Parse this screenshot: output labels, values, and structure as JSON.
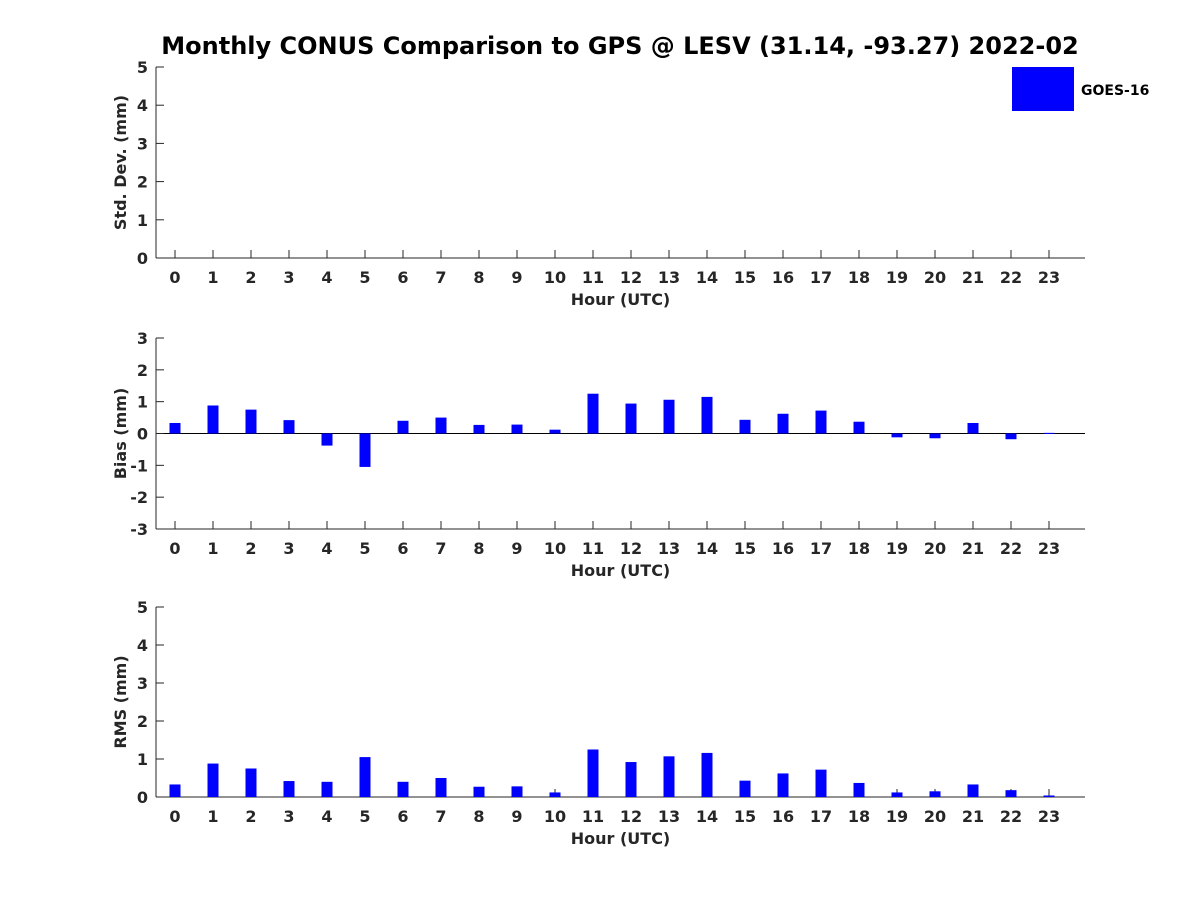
{
  "title": "Monthly CONUS Comparison to GPS @ LESV (31.14, -93.27) 2022-02",
  "legend": {
    "label": "GOES-16",
    "color": "#0000ff",
    "placement": "top-right"
  },
  "chart_data": [
    {
      "type": "bar",
      "id": "std",
      "xlabel": "Hour (UTC)",
      "ylabel": "Std. Dev. (mm)",
      "categories": [
        "0",
        "1",
        "2",
        "3",
        "4",
        "5",
        "6",
        "7",
        "8",
        "9",
        "10",
        "11",
        "12",
        "13",
        "14",
        "15",
        "16",
        "17",
        "18",
        "19",
        "20",
        "21",
        "22",
        "23"
      ],
      "ylim": [
        0,
        5
      ],
      "yticks": [
        "0",
        "1",
        "2",
        "3",
        "4",
        "5"
      ],
      "grid": false,
      "series": [
        {
          "values": [
            null,
            null,
            null,
            null,
            null,
            null,
            null,
            null,
            null,
            null,
            null,
            null,
            null,
            null,
            null,
            null,
            null,
            null,
            null,
            null,
            null,
            null,
            null,
            null
          ]
        }
      ]
    },
    {
      "type": "bar",
      "id": "bias",
      "xlabel": "Hour (UTC)",
      "ylabel": "Bias (mm)",
      "categories": [
        "0",
        "1",
        "2",
        "3",
        "4",
        "5",
        "6",
        "7",
        "8",
        "9",
        "10",
        "11",
        "12",
        "13",
        "14",
        "15",
        "16",
        "17",
        "18",
        "19",
        "20",
        "21",
        "22",
        "23"
      ],
      "ylim": [
        -3,
        3
      ],
      "yticks": [
        "-3",
        "-2",
        "-1",
        "0",
        "1",
        "2",
        "3"
      ],
      "grid": false,
      "series": [
        {
          "values": [
            0.33,
            0.88,
            0.75,
            0.42,
            -0.38,
            -1.05,
            0.4,
            0.5,
            0.27,
            0.28,
            0.12,
            1.25,
            0.94,
            1.06,
            1.15,
            0.43,
            0.62,
            0.72,
            0.37,
            -0.12,
            -0.15,
            0.33,
            -0.18,
            0.02
          ]
        }
      ]
    },
    {
      "type": "bar",
      "id": "rms",
      "xlabel": "Hour (UTC)",
      "ylabel": "RMS (mm)",
      "categories": [
        "0",
        "1",
        "2",
        "3",
        "4",
        "5",
        "6",
        "7",
        "8",
        "9",
        "10",
        "11",
        "12",
        "13",
        "14",
        "15",
        "16",
        "17",
        "18",
        "19",
        "20",
        "21",
        "22",
        "23"
      ],
      "ylim": [
        0,
        5
      ],
      "yticks": [
        "0",
        "1",
        "2",
        "3",
        "4",
        "5"
      ],
      "grid": false,
      "series": [
        {
          "values": [
            0.33,
            0.88,
            0.75,
            0.42,
            0.4,
            1.05,
            0.4,
            0.5,
            0.27,
            0.28,
            0.12,
            1.25,
            0.92,
            1.07,
            1.16,
            0.43,
            0.62,
            0.72,
            0.37,
            0.12,
            0.15,
            0.33,
            0.18,
            0.04
          ]
        }
      ]
    }
  ]
}
